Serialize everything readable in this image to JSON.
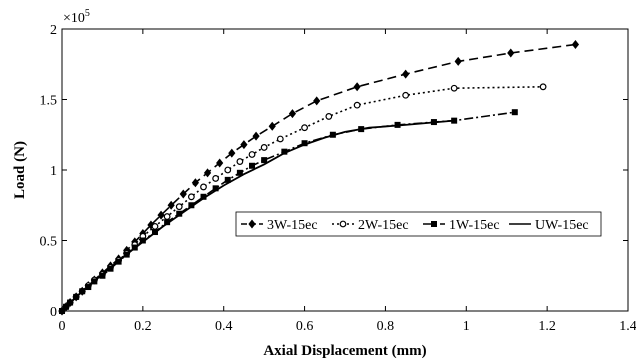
{
  "chart_data": {
    "type": "line",
    "xlabel": "Axial Displacement (mm)",
    "ylabel": "Load (N)",
    "xlim": [
      0,
      1.4
    ],
    "ylim": [
      0,
      2
    ],
    "x_ticks": [
      0,
      0.2,
      0.4,
      0.6,
      0.8,
      1,
      1.2,
      1.4
    ],
    "x_tick_labels": [
      "0",
      "0.2",
      "0.4",
      "0.6",
      "0.8",
      "1",
      "1.2",
      "1.4"
    ],
    "y_ticks": [
      0,
      0.5,
      1,
      1.5,
      2
    ],
    "y_tick_labels": [
      "0",
      "0.5",
      "1",
      "1.5",
      "2"
    ],
    "y_multiplier_base": "×10",
    "y_multiplier_exp": "5",
    "grid": false,
    "legend_position": "inside-lower-right",
    "series": [
      {
        "name": "3W-15ec",
        "marker": "diamond",
        "dash": "dashed",
        "x": [
          0,
          0.01,
          0.02,
          0.035,
          0.05,
          0.065,
          0.08,
          0.1,
          0.12,
          0.14,
          0.16,
          0.18,
          0.2,
          0.22,
          0.245,
          0.27,
          0.3,
          0.33,
          0.36,
          0.39,
          0.42,
          0.45,
          0.48,
          0.52,
          0.57,
          0.63,
          0.73,
          0.85,
          0.98,
          1.11,
          1.27
        ],
        "y": [
          0,
          0.03,
          0.06,
          0.1,
          0.14,
          0.18,
          0.22,
          0.27,
          0.32,
          0.37,
          0.43,
          0.49,
          0.55,
          0.61,
          0.68,
          0.75,
          0.83,
          0.91,
          0.98,
          1.05,
          1.12,
          1.18,
          1.24,
          1.31,
          1.4,
          1.49,
          1.59,
          1.68,
          1.77,
          1.83,
          1.89
        ]
      },
      {
        "name": "2W-15ec",
        "marker": "circle",
        "dash": "dotted",
        "x": [
          0,
          0.01,
          0.02,
          0.035,
          0.05,
          0.065,
          0.08,
          0.1,
          0.12,
          0.14,
          0.16,
          0.18,
          0.2,
          0.23,
          0.26,
          0.29,
          0.32,
          0.35,
          0.38,
          0.41,
          0.44,
          0.47,
          0.5,
          0.54,
          0.6,
          0.66,
          0.73,
          0.85,
          0.97,
          1.19
        ],
        "y": [
          0,
          0.03,
          0.06,
          0.1,
          0.14,
          0.18,
          0.22,
          0.26,
          0.31,
          0.36,
          0.41,
          0.47,
          0.53,
          0.6,
          0.67,
          0.74,
          0.81,
          0.88,
          0.94,
          1.0,
          1.06,
          1.11,
          1.16,
          1.22,
          1.3,
          1.38,
          1.46,
          1.53,
          1.58,
          1.59
        ]
      },
      {
        "name": "1W-15ec",
        "marker": "square",
        "dash": "dashdot",
        "x": [
          0,
          0.01,
          0.02,
          0.035,
          0.05,
          0.065,
          0.08,
          0.1,
          0.12,
          0.14,
          0.16,
          0.18,
          0.2,
          0.23,
          0.26,
          0.29,
          0.32,
          0.35,
          0.38,
          0.41,
          0.44,
          0.47,
          0.5,
          0.55,
          0.6,
          0.67,
          0.74,
          0.83,
          0.92,
          0.97,
          1.12
        ],
        "y": [
          0,
          0.03,
          0.06,
          0.1,
          0.14,
          0.17,
          0.21,
          0.25,
          0.3,
          0.35,
          0.4,
          0.45,
          0.5,
          0.56,
          0.63,
          0.69,
          0.75,
          0.81,
          0.87,
          0.93,
          0.98,
          1.03,
          1.07,
          1.13,
          1.19,
          1.25,
          1.29,
          1.32,
          1.34,
          1.35,
          1.41
        ]
      },
      {
        "name": "UW-15ec",
        "marker": "none",
        "dash": "solid",
        "x": [
          0,
          0.05,
          0.1,
          0.15,
          0.2,
          0.25,
          0.3,
          0.35,
          0.4,
          0.45,
          0.5,
          0.55,
          0.6,
          0.65,
          0.7,
          0.76,
          0.85,
          0.97
        ],
        "y": [
          0,
          0.14,
          0.26,
          0.38,
          0.49,
          0.6,
          0.7,
          0.8,
          0.89,
          0.97,
          1.04,
          1.12,
          1.18,
          1.23,
          1.27,
          1.3,
          1.32,
          1.35
        ]
      }
    ]
  }
}
